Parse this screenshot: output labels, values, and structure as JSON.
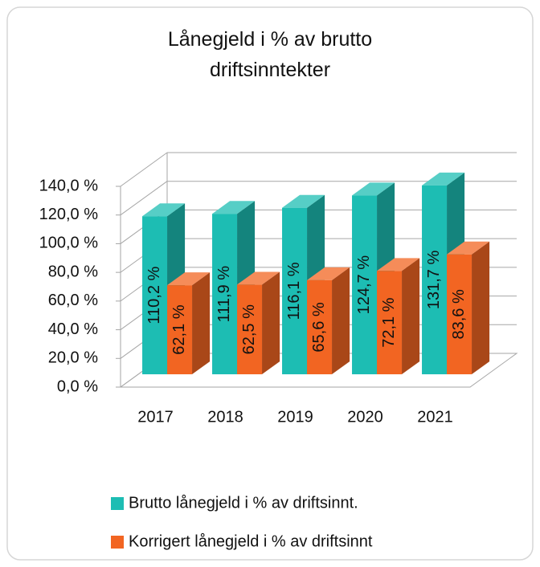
{
  "chart_data": {
    "type": "bar3d",
    "title": "Lånegjeld i % av brutto driftsinntekter",
    "categories": [
      "2017",
      "2018",
      "2019",
      "2020",
      "2021"
    ],
    "series": [
      {
        "name": "Brutto lånegjeld i % av driftsinnt.",
        "color": "#1dbdb3",
        "values": [
          110.2,
          111.9,
          116.1,
          124.7,
          131.7
        ],
        "value_labels": [
          "110,2 %",
          "111,9 %",
          "116,1 %",
          "124,7 %",
          "131,7 %"
        ]
      },
      {
        "name": "Korrigert lånegjeld i % av driftsinnt",
        "color": "#f26522",
        "values": [
          62.1,
          62.5,
          65.6,
          72.1,
          83.6
        ],
        "value_labels": [
          "62,1 %",
          "62,5 %",
          "65,6 %",
          "72,1 %",
          "83,6 %"
        ]
      }
    ],
    "ylim": [
      0,
      140
    ],
    "yticks": [
      {
        "value": 0,
        "label": "0,0 %"
      },
      {
        "value": 20,
        "label": "20,0 %"
      },
      {
        "value": 40,
        "label": "40,0 %"
      },
      {
        "value": 60,
        "label": "60,0 %"
      },
      {
        "value": 80,
        "label": "80,0 %"
      },
      {
        "value": 100,
        "label": "100,0 %"
      },
      {
        "value": 120,
        "label": "120,0 %"
      },
      {
        "value": 140,
        "label": "140,0 %"
      }
    ],
    "grid": true,
    "legend": "bottom"
  }
}
